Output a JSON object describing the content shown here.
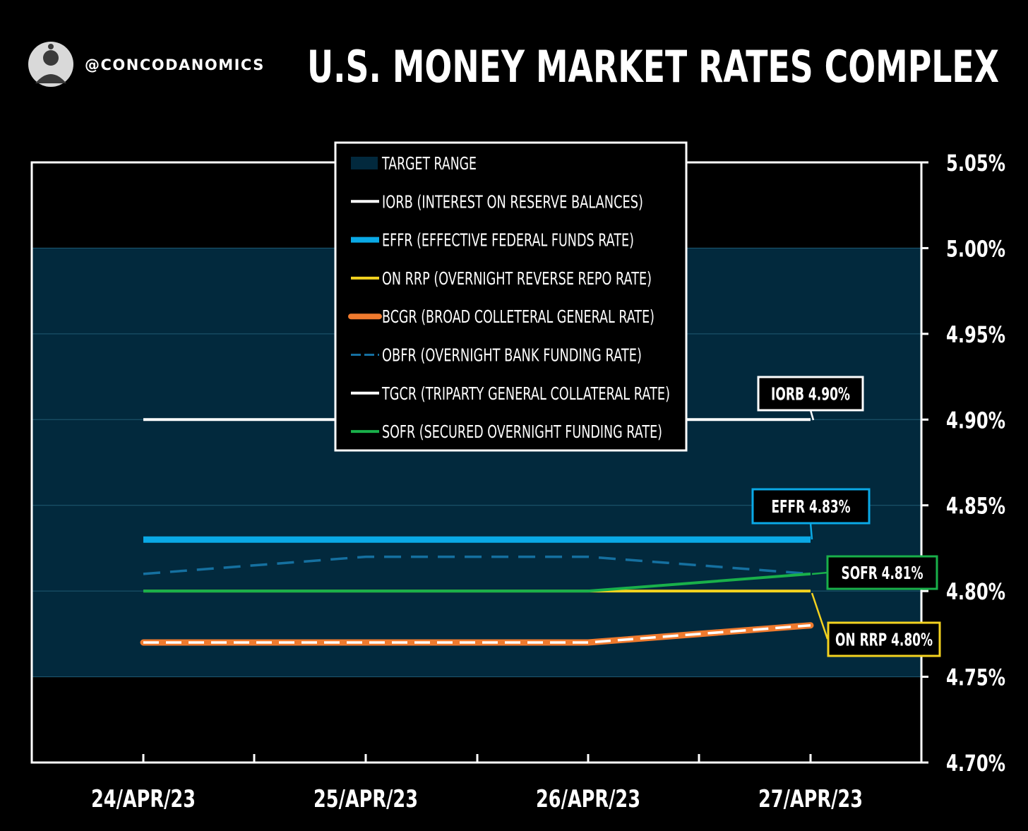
{
  "header": {
    "handle": "@CONCODANOMICS",
    "title": "U.S. MONEY MARKET RATES COMPLEX"
  },
  "colors": {
    "background": "#000000",
    "target_range": "#02293d",
    "iorb": "#ffffff",
    "effr": "#0aa9e6",
    "on_rrp": "#f3d21f",
    "bcgr": "#ef7a2e",
    "obfr": "#1570a0",
    "tgcr": "#ffffff",
    "sofr": "#19b04a"
  },
  "chart_data": {
    "type": "line",
    "title": "U.S. MONEY MARKET RATES COMPLEX",
    "categories": [
      "24/APR/23",
      "25/APR/23",
      "26/APR/23",
      "27/APR/23"
    ],
    "ylim": [
      4.7,
      5.05
    ],
    "yticks": [
      "5.05%",
      "5.00%",
      "4.95%",
      "4.90%",
      "4.85%",
      "4.80%",
      "4.75%",
      "4.70%"
    ],
    "ytick_values": [
      5.05,
      5.0,
      4.95,
      4.9,
      4.85,
      4.8,
      4.75,
      4.7
    ],
    "y_axis_side": "right",
    "grid": true,
    "legend_placement": "top-center",
    "target_range": {
      "name": "TARGET RANGE",
      "low": 4.75,
      "high": 5.0
    },
    "series": [
      {
        "key": "iorb",
        "name": "IORB (INTEREST ON RESERVE BALANCES)",
        "values": [
          4.9,
          4.9,
          4.9,
          4.9
        ]
      },
      {
        "key": "effr",
        "name": "EFFR (EFFECTIVE FEDERAL FUNDS RATE)",
        "values": [
          4.83,
          4.83,
          4.83,
          4.83
        ]
      },
      {
        "key": "on_rrp",
        "name": "ON RRP (OVERNIGHT REVERSE REPO RATE)",
        "values": [
          4.8,
          4.8,
          4.8,
          4.8
        ]
      },
      {
        "key": "bcgr",
        "name": "BCGR (BROAD COLLETERAL GENERAL RATE)",
        "values": [
          4.77,
          4.77,
          4.77,
          4.78
        ]
      },
      {
        "key": "obfr",
        "name": "OBFR (OVERNIGHT BANK FUNDING RATE)",
        "values": [
          4.81,
          4.82,
          4.82,
          4.81
        ]
      },
      {
        "key": "tgcr",
        "name": "TGCR (TRIPARTY GENERAL COLLATERAL RATE)",
        "values": [
          4.77,
          4.77,
          4.77,
          4.78
        ]
      },
      {
        "key": "sofr",
        "name": "SOFR (SECURED OVERNIGHT FUNDING RATE)",
        "values": [
          4.8,
          4.8,
          4.8,
          4.81
        ]
      }
    ],
    "annotations": [
      {
        "key": "iorb",
        "text": "IORB 4.90%",
        "value": 4.9
      },
      {
        "key": "effr",
        "text": "EFFR 4.83%",
        "value": 4.83
      },
      {
        "key": "sofr",
        "text": "SOFR 4.81%",
        "value": 4.81
      },
      {
        "key": "on_rrp",
        "text": "ON RRP 4.80%",
        "value": 4.8
      }
    ]
  }
}
